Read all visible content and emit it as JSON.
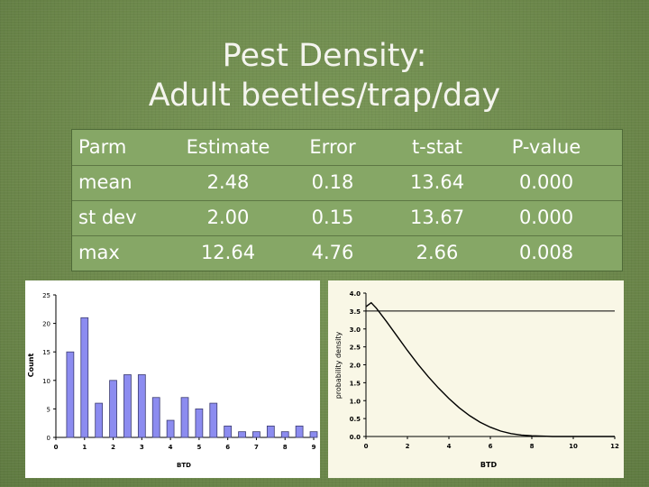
{
  "slide": {
    "title_line1": "Pest Density:",
    "title_line2": "Adult beetles/trap/day"
  },
  "table": {
    "headers": [
      "Parm",
      "Estimate",
      "Error",
      "t-stat",
      "P-value"
    ],
    "rows": [
      [
        "mean",
        "2.48",
        "0.18",
        "13.64",
        "0.000"
      ],
      [
        "st dev",
        "2.00",
        "0.15",
        "13.67",
        "0.000"
      ],
      [
        "max",
        "12.64",
        "4.76",
        "2.66",
        "0.008"
      ]
    ]
  },
  "chart_data": [
    {
      "type": "bar",
      "xlabel": "BTD",
      "ylabel": "Count",
      "xlim": [
        0,
        9
      ],
      "ylim": [
        0,
        25
      ],
      "xticks": [
        0,
        1,
        2,
        3,
        4,
        5,
        6,
        7,
        8,
        9
      ],
      "yticks": [
        0,
        5,
        10,
        15,
        20,
        25
      ],
      "bar_color": "#8c8cf0",
      "bin_width": 0.25,
      "bin_centers": [
        0.5,
        1.0,
        1.5,
        2.0,
        2.5,
        3.0,
        3.5,
        4.0,
        4.5,
        5.0,
        5.5,
        6.0,
        6.5,
        7.0,
        7.5,
        8.0,
        8.5,
        9.0
      ],
      "values": [
        15,
        21,
        6,
        10,
        11,
        11,
        7,
        3,
        7,
        5,
        6,
        2,
        1,
        1,
        2,
        1,
        2,
        1
      ],
      "grid": false
    },
    {
      "type": "line",
      "xlabel": "BTD",
      "ylabel": "probability density",
      "xlim": [
        0,
        12
      ],
      "ylim": [
        0,
        4.0
      ],
      "xticks": [
        0,
        2,
        4,
        6,
        8,
        10,
        12
      ],
      "yticks": [
        0.0,
        0.5,
        1.0,
        1.5,
        2.0,
        2.5,
        3.0,
        3.5,
        4.0
      ],
      "reference_line_y": 3.5,
      "series": [
        {
          "x": [
            0,
            0.25,
            0.5,
            1,
            1.5,
            2,
            2.5,
            3,
            3.5,
            4,
            4.5,
            5,
            5.5,
            6,
            6.5,
            7,
            7.5,
            8,
            9,
            10,
            11,
            12
          ],
          "y": [
            3.62,
            3.73,
            3.58,
            3.2,
            2.8,
            2.4,
            2.02,
            1.67,
            1.35,
            1.06,
            0.8,
            0.58,
            0.4,
            0.26,
            0.15,
            0.08,
            0.04,
            0.02,
            0.0,
            0.0,
            0.0,
            0.0
          ]
        }
      ],
      "grid": false
    }
  ]
}
